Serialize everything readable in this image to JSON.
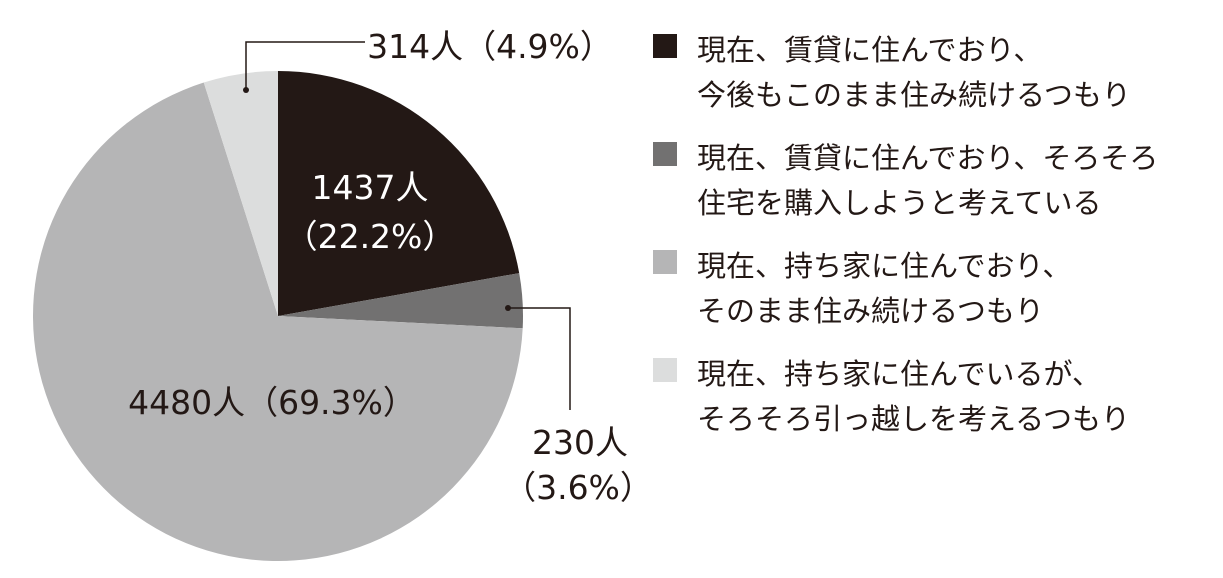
{
  "chart_data": {
    "type": "pie",
    "title": "",
    "start": "top",
    "direction": "clockwise",
    "slices": [
      {
        "label": "現在、賃貸に住んでおり、今後もこのまま住み続けるつもり",
        "lines": [
          "現在、賃貸に住んでおり、",
          "今後もこのまま住み続けるつもり"
        ],
        "count": 1437,
        "percent": 22.2,
        "count_label": "1437人",
        "pct_label": "（22.2%）",
        "color": "#231815"
      },
      {
        "label": "現在、賃貸に住んでおり、そろそろ住宅を購入しようと考えている",
        "lines": [
          "現在、賃貸に住んでおり、そろそろ",
          "住宅を購入しようと考えている"
        ],
        "count": 230,
        "percent": 3.6,
        "count_label": "230人",
        "pct_label": "（3.6%）",
        "color": "#727171"
      },
      {
        "label": "現在、持ち家に住んでおり、そのまま住み続けるつもり",
        "lines": [
          "現在、持ち家に住んでおり、",
          "そのまま住み続けるつもり"
        ],
        "count": 4480,
        "percent": 69.3,
        "count_label": "4480人（69.3%）",
        "pct_label": "",
        "color": "#b5b5b6"
      },
      {
        "label": "現在、持ち家に住んでいるが、そろそろ引っ越しを考えるつもり",
        "lines": [
          "現在、持ち家に住んでいるが、",
          "そろそろ引っ越しを考えるつもり"
        ],
        "count": 314,
        "percent": 4.9,
        "count_label": "314人（4.9%）",
        "pct_label": "",
        "color": "#dcdddd"
      }
    ],
    "legend_position": "right"
  }
}
